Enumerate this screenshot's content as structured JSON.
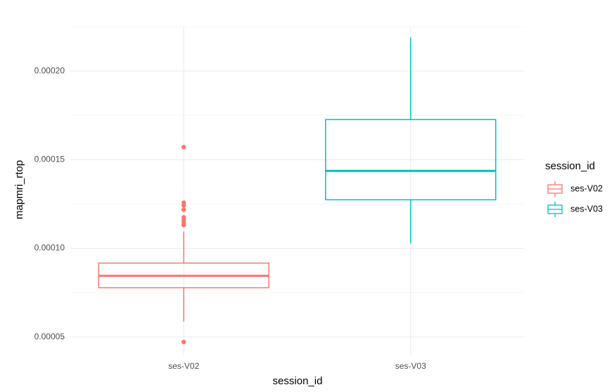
{
  "chart_data": {
    "type": "boxplot",
    "x_label": "session_id",
    "y_label": "mapmri_rtop",
    "legend_title": "session_id",
    "categories": [
      "ses-V02",
      "ses-V03"
    ],
    "series": [
      {
        "name": "ses-V02",
        "color": "#F8766D",
        "min": 5.87e-05,
        "q1": 7.78e-05,
        "median": 8.45e-05,
        "q3": 9.17e-05,
        "max": 0.0001095,
        "outliers": [
          0.0001571,
          0.0001258,
          0.0001242,
          0.0001218,
          0.0001175,
          0.0001159,
          0.0001143,
          0.0001131,
          4.72e-05
        ]
      },
      {
        "name": "ses-V03",
        "color": "#00BFC4",
        "min": 0.0001028,
        "q1": 0.0001274,
        "median": 0.0001437,
        "q3": 0.0001726,
        "max": 0.000219,
        "outliers": []
      }
    ],
    "ylim": [
      4e-05,
      0.000225
    ],
    "yticks": [
      5e-05,
      {
        "value": 0.0001,
        "label": "0.00010"
      },
      0.00015,
      {
        "value": 0.0002,
        "label": "0.00020"
      }
    ],
    "grid": true,
    "legend_position": "right"
  }
}
